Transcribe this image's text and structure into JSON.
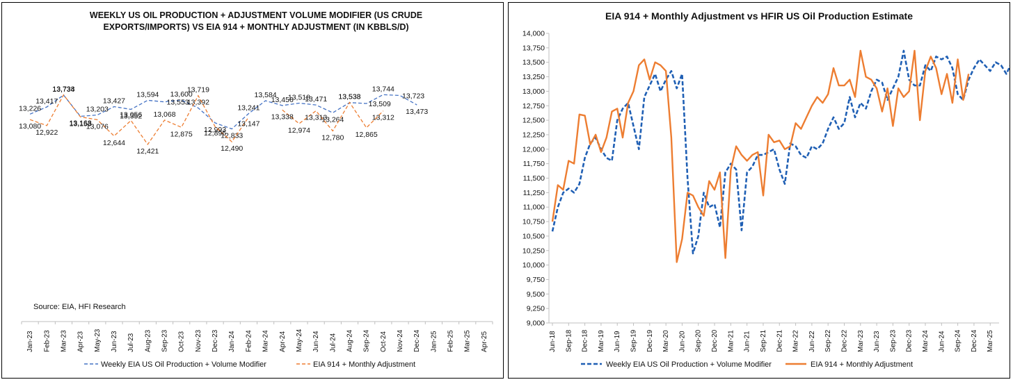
{
  "chart_data": [
    {
      "type": "line",
      "title_lines": [
        "WEEKLY US OIL PRODUCTION + ADJUSTMENT VOLUME MODIFIER (US CRUDE",
        "EXPORTS/IMPORTS) VS EIA 914 + MONTHLY ADJUSTMENT (IN KBBLS/D)"
      ],
      "source": "Source: EIA, HFI Research",
      "categories": [
        "Jan-23",
        "Feb-23",
        "Mar-23",
        "Apr-23",
        "May-23",
        "Jun-23",
        "Jul-23",
        "Aug-23",
        "Sep-23",
        "Oct-23",
        "Nov-23",
        "Dec-23",
        "Jan-24",
        "Feb-24",
        "Mar-24",
        "Apr-24",
        "May-24",
        "Jun-24",
        "Jul-24",
        "Aug-24",
        "Sep-24",
        "Oct-24",
        "Nov-24",
        "Dec-24",
        "Jan-25",
        "Feb-25",
        "Mar-25",
        "Apr-25"
      ],
      "series": [
        {
          "name": "Weekly EIA US Oil Production + Volume Modifier",
          "color": "#4472C4",
          "dash": "dashed",
          "values": [
            13226,
            13417,
            13734,
            13168,
            13203,
            13427,
            13352,
            13594,
            13553,
            13600,
            13392,
            12993,
            12833,
            13241,
            13584,
            13456,
            13518,
            13471,
            13264,
            13533,
            13509,
            13744,
            13723,
            13473,
            null,
            null,
            null,
            null
          ],
          "label_side": [
            "above",
            "above",
            "above",
            "below",
            "above",
            "above",
            "below",
            "above",
            "right",
            "above",
            "above",
            "below",
            "below",
            "above",
            "above",
            "above",
            "above",
            "above",
            "below",
            "above",
            "right",
            "above",
            "right",
            "below",
            null,
            null,
            null,
            null
          ]
        },
        {
          "name": "EIA 914 + Monthly Adjustment",
          "color": "#ED7D31",
          "dash": "dashed",
          "values": [
            13080,
            12922,
            13738,
            13153,
            13076,
            12644,
            13056,
            12421,
            13068,
            12875,
            13719,
            12896,
            12490,
            13147,
            null,
            13338,
            12974,
            13313,
            12780,
            13538,
            12865,
            13312,
            null,
            null,
            null,
            null,
            null,
            null
          ],
          "label_side": [
            "below",
            "below",
            "above",
            "below",
            "below",
            "below",
            "above",
            "below",
            "above",
            "below",
            "above",
            "below",
            "below",
            "below",
            null,
            "below",
            "below",
            "below",
            "below",
            "above",
            "below",
            "below",
            null,
            null,
            null,
            null,
            null,
            null
          ]
        }
      ]
    },
    {
      "type": "line",
      "title": "EIA 914 + Monthly Adjustment vs HFIR US Oil Production Estimate",
      "ylim": [
        9000,
        14000
      ],
      "yticks": [
        9000,
        9250,
        9500,
        9750,
        10000,
        10250,
        10500,
        10750,
        11000,
        11250,
        11500,
        11750,
        12000,
        12250,
        12500,
        12750,
        13000,
        13250,
        13500,
        13750,
        14000
      ],
      "ytick_labels": [
        "9,000",
        "9,250",
        "9,500",
        "9,750",
        "10,000",
        "10,250",
        "10,500",
        "10,750",
        "11,000",
        "11,250",
        "11,500",
        "11,750",
        "12,000",
        "12,250",
        "12,500",
        "12,750",
        "13,000",
        "13,250",
        "13,500",
        "13,750",
        "14,000"
      ],
      "xtick_labels": [
        "Jun-18",
        "Sep-18",
        "Dec-18",
        "Mar-19",
        "Jun-19",
        "Sep-19",
        "Dec-19",
        "Mar-20",
        "Jun-20",
        "Sep-20",
        "Dec-20",
        "Mar-21",
        "Jun-21",
        "Sep-21",
        "Dec-21",
        "Mar-22",
        "Jun-22",
        "Sep-22",
        "Dec-22",
        "Mar-23",
        "Jun-23",
        "Sep-23",
        "Dec-23",
        "Mar-24",
        "Jun-24",
        "Sep-24",
        "Dec-24",
        "Mar-25"
      ],
      "x_start": "2018-06",
      "x_end": "2025-03",
      "series": [
        {
          "name": "Weekly EIA US Oil Production + Volume Modifier",
          "color": "#1F5FB4",
          "dash": "dashed",
          "values": [
            10580,
            11000,
            11250,
            11320,
            11250,
            11400,
            11850,
            12100,
            12200,
            12000,
            11850,
            11800,
            12500,
            12700,
            12800,
            12400,
            12000,
            12900,
            13100,
            13300,
            13000,
            13200,
            13350,
            13050,
            13300,
            11500,
            10200,
            10500,
            11250,
            11000,
            11050,
            10650,
            11600,
            11750,
            11650,
            10600,
            11600,
            11700,
            11900,
            11900,
            11950,
            12000,
            11650,
            11400,
            12100,
            12050,
            11900,
            11850,
            12050,
            12000,
            12100,
            12350,
            12550,
            12350,
            12450,
            12900,
            12550,
            12800,
            12700,
            13000,
            13200,
            13150,
            12850,
            13050,
            13250,
            13700,
            13200,
            13100,
            13100,
            13450,
            13350,
            13600,
            13550,
            13600,
            13400,
            12950,
            12850,
            13200,
            13400,
            13550,
            13450,
            13350,
            13500,
            13450,
            13300,
            13500,
            13550,
            13750,
            13650,
            13500
          ],
          "x_index_start": 0
        },
        {
          "name": "EIA 914 + Monthly Adjustment",
          "color": "#ED7D31",
          "dash": "solid",
          "values": [
            10750,
            11380,
            11300,
            11800,
            11750,
            12600,
            12580,
            12080,
            12250,
            11950,
            12200,
            12650,
            12700,
            12200,
            12800,
            13000,
            13450,
            13550,
            13200,
            13500,
            13450,
            13350,
            12200,
            10050,
            10450,
            11250,
            11200,
            11000,
            10850,
            11450,
            11300,
            11600,
            10120,
            11650,
            12050,
            11900,
            11800,
            11900,
            11950,
            11200,
            12250,
            12120,
            12150,
            12000,
            12050,
            12450,
            12350,
            12550,
            12750,
            12900,
            12800,
            12950,
            13400,
            13100,
            13100,
            13200,
            12900,
            13700,
            13250,
            13200,
            13050,
            12650,
            13050,
            12400,
            13050,
            12900,
            13000,
            13700,
            12500,
            13350,
            13600,
            13400,
            12950,
            13300,
            12800,
            13550,
            12850,
            13300,
            null
          ],
          "x_index_start": 0
        }
      ]
    }
  ],
  "legend_markers": {
    "dashed": "- - -",
    "solid": "———"
  }
}
